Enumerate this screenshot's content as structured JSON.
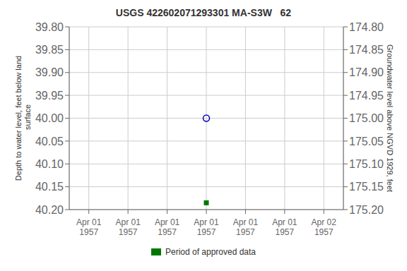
{
  "chart_data": {
    "type": "scatter",
    "title": "USGS 422602071293301 MA-S3W   62",
    "ylabel": "Depth to water level, feet below land\n surface",
    "y2label": "Groundwater level above NGVD 1929, feet",
    "categories": [
      "Apr 01\n1957",
      "Apr 01\n1957",
      "Apr 01\n1957",
      "Apr 01\n1957",
      "Apr 01\n1957",
      "Apr 01\n1957",
      "Apr 02\n1957"
    ],
    "series": [
      {
        "color": "#0000bb",
        "marker": "open_circle",
        "values": [
          null,
          null,
          null,
          40.0,
          null,
          null,
          null
        ]
      },
      {
        "name": "Period of approved data",
        "color": "#007700",
        "marker": "square",
        "values": [
          null,
          null,
          null,
          40.185,
          null,
          null,
          null
        ]
      }
    ],
    "ylim": [
      40.2,
      39.8
    ],
    "yticks": [
      {
        "value": 39.8,
        "label": "39.80"
      },
      {
        "value": 39.85,
        "label": "39.85"
      },
      {
        "value": 39.9,
        "label": "39.90"
      },
      {
        "value": 39.95,
        "label": "39.95"
      },
      {
        "value": 40.0,
        "label": "40.00"
      },
      {
        "value": 40.05,
        "label": "40.05"
      },
      {
        "value": 40.1,
        "label": "40.10"
      },
      {
        "value": 40.15,
        "label": "40.15"
      },
      {
        "value": 40.2,
        "label": "40.20"
      }
    ],
    "y2lim": [
      175.2,
      174.8
    ],
    "y2ticks": [
      {
        "value": 175.2,
        "label": "175.20"
      },
      {
        "value": 175.15,
        "label": "175.15"
      },
      {
        "value": 175.1,
        "label": "175.10"
      },
      {
        "value": 175.05,
        "label": "175.05"
      },
      {
        "value": 175.0,
        "label": "175.00"
      },
      {
        "value": 174.95,
        "label": "174.95"
      },
      {
        "value": 174.9,
        "label": "174.90"
      },
      {
        "value": 174.85,
        "label": "174.85"
      },
      {
        "value": 174.8,
        "label": "174.80"
      }
    ],
    "grid": true,
    "legend": "bottom"
  }
}
